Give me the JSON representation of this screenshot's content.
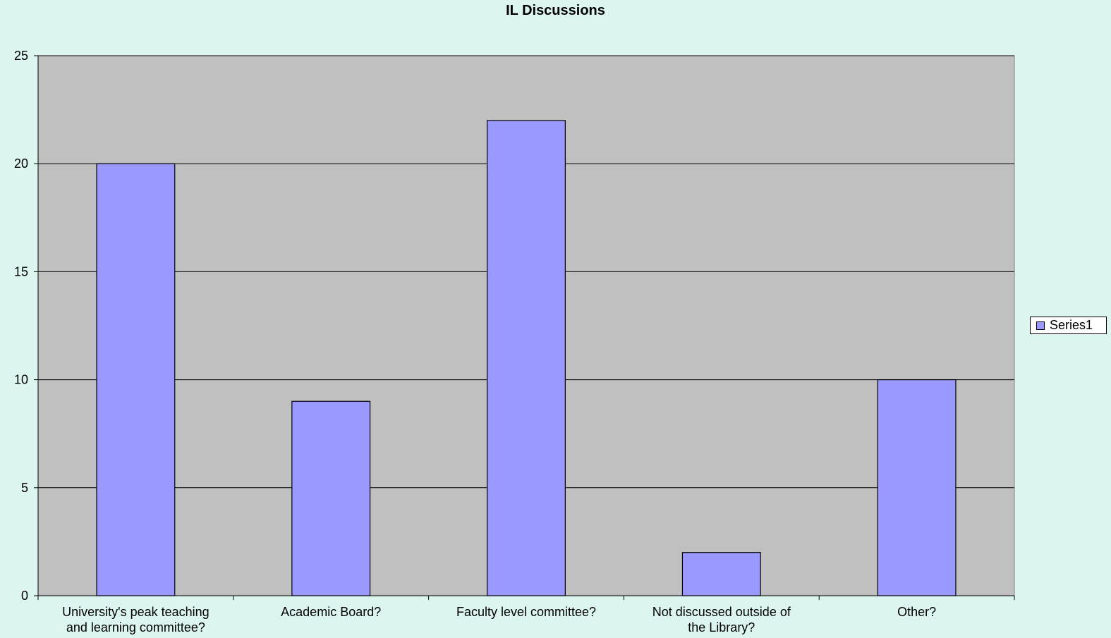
{
  "chart_data": {
    "type": "bar",
    "title": "IL Discussions",
    "categories": [
      [
        "University's peak teaching",
        "and learning committee?"
      ],
      [
        "Academic Board?"
      ],
      [
        "Faculty level committee?"
      ],
      [
        "Not discussed outside of",
        "the Library?"
      ],
      [
        "Other?"
      ]
    ],
    "series": [
      {
        "name": "Series1",
        "values": [
          20,
          9,
          22,
          2,
          10
        ]
      }
    ],
    "ylim": [
      0,
      25
    ],
    "yticks": [
      0,
      5,
      10,
      15,
      20,
      25
    ],
    "grid": true,
    "legend_position": "right",
    "xlabel": "",
    "ylabel": ""
  },
  "colors": {
    "bar_fill": "#9999ff",
    "plot_background": "#c0c0c0",
    "page_background": "#dcf5f1",
    "axis": "#000000"
  }
}
